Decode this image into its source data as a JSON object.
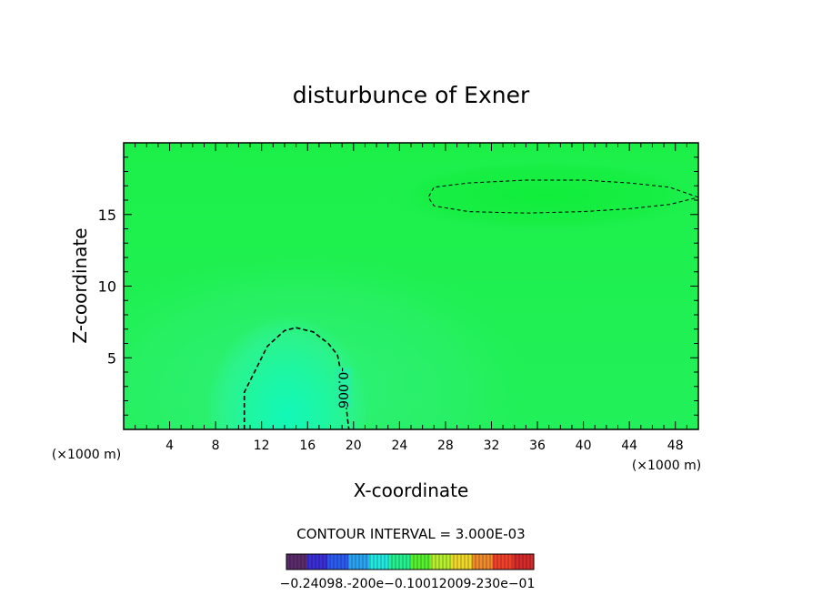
{
  "chart_data": {
    "type": "contour",
    "title": "disturbunce of Exner",
    "xlabel": "X-coordinate",
    "ylabel": "Z-coordinate",
    "x_unit_label": "(×1000 m)",
    "x_unit_label_left": "(×1000 m)",
    "xlim": [
      0,
      50
    ],
    "ylim": [
      0,
      20
    ],
    "x_ticks": [
      4,
      8,
      12,
      16,
      20,
      24,
      28,
      32,
      36,
      40,
      44,
      48
    ],
    "y_ticks": [
      5,
      10,
      15
    ],
    "x_tick_labels": [
      "4",
      "8",
      "12",
      "16",
      "20",
      "24",
      "28",
      "32",
      "36",
      "40",
      "44",
      "48"
    ],
    "y_tick_labels": [
      "5",
      "10",
      "15"
    ],
    "contour_interval_text": "CONTOUR INTERVAL = 3.000E-03",
    "colors": {
      "background_field": "#22f05a",
      "high_region": "#1cf043",
      "low_region": "#1ef6a0",
      "mid_region": "#2af57a",
      "frame": "#000000"
    },
    "contours": [
      {
        "level": -0.006,
        "label": "-0.006",
        "style": "dashed",
        "points": [
          [
            10.5,
            0
          ],
          [
            10.5,
            2.6
          ],
          [
            11.5,
            4.2
          ],
          [
            12.5,
            5.8
          ],
          [
            14.0,
            6.9
          ],
          [
            15.0,
            7.1
          ],
          [
            16.5,
            6.8
          ],
          [
            17.8,
            6.0
          ],
          [
            18.6,
            5.2
          ],
          [
            19.0,
            3.6
          ],
          [
            19.3,
            2.0
          ],
          [
            19.5,
            0.6
          ],
          [
            19.6,
            0
          ]
        ]
      },
      {
        "level": 0.003,
        "label": "",
        "style": "dashed",
        "points": [
          [
            50.0,
            16.2
          ],
          [
            47.5,
            16.9
          ],
          [
            44.0,
            17.2
          ],
          [
            40.0,
            17.4
          ],
          [
            35.0,
            17.4
          ],
          [
            30.0,
            17.2
          ],
          [
            27.0,
            16.9
          ],
          [
            26.5,
            16.2
          ],
          [
            27.0,
            15.6
          ],
          [
            30.0,
            15.2
          ],
          [
            35.0,
            15.1
          ],
          [
            40.0,
            15.2
          ],
          [
            44.0,
            15.4
          ],
          [
            47.5,
            15.7
          ],
          [
            50.0,
            16.2
          ]
        ]
      }
    ],
    "colorbar": {
      "min": -0.024,
      "max": 0.024,
      "tick_labels": [
        "-0.240",
        "-0.120",
        "0.000",
        "0.120",
        "0.240"
      ],
      "tick_label_text": "−0.24098.‐200e−0.10012009‐230e−01",
      "colors": [
        "#5b2a6b",
        "#3a2ed6",
        "#2b5bf0",
        "#2aa4f2",
        "#22e8e0",
        "#24f08f",
        "#56f02e",
        "#b7ee2e",
        "#f0d82a",
        "#f08a2a",
        "#f0402a",
        "#d62a2a"
      ]
    }
  }
}
